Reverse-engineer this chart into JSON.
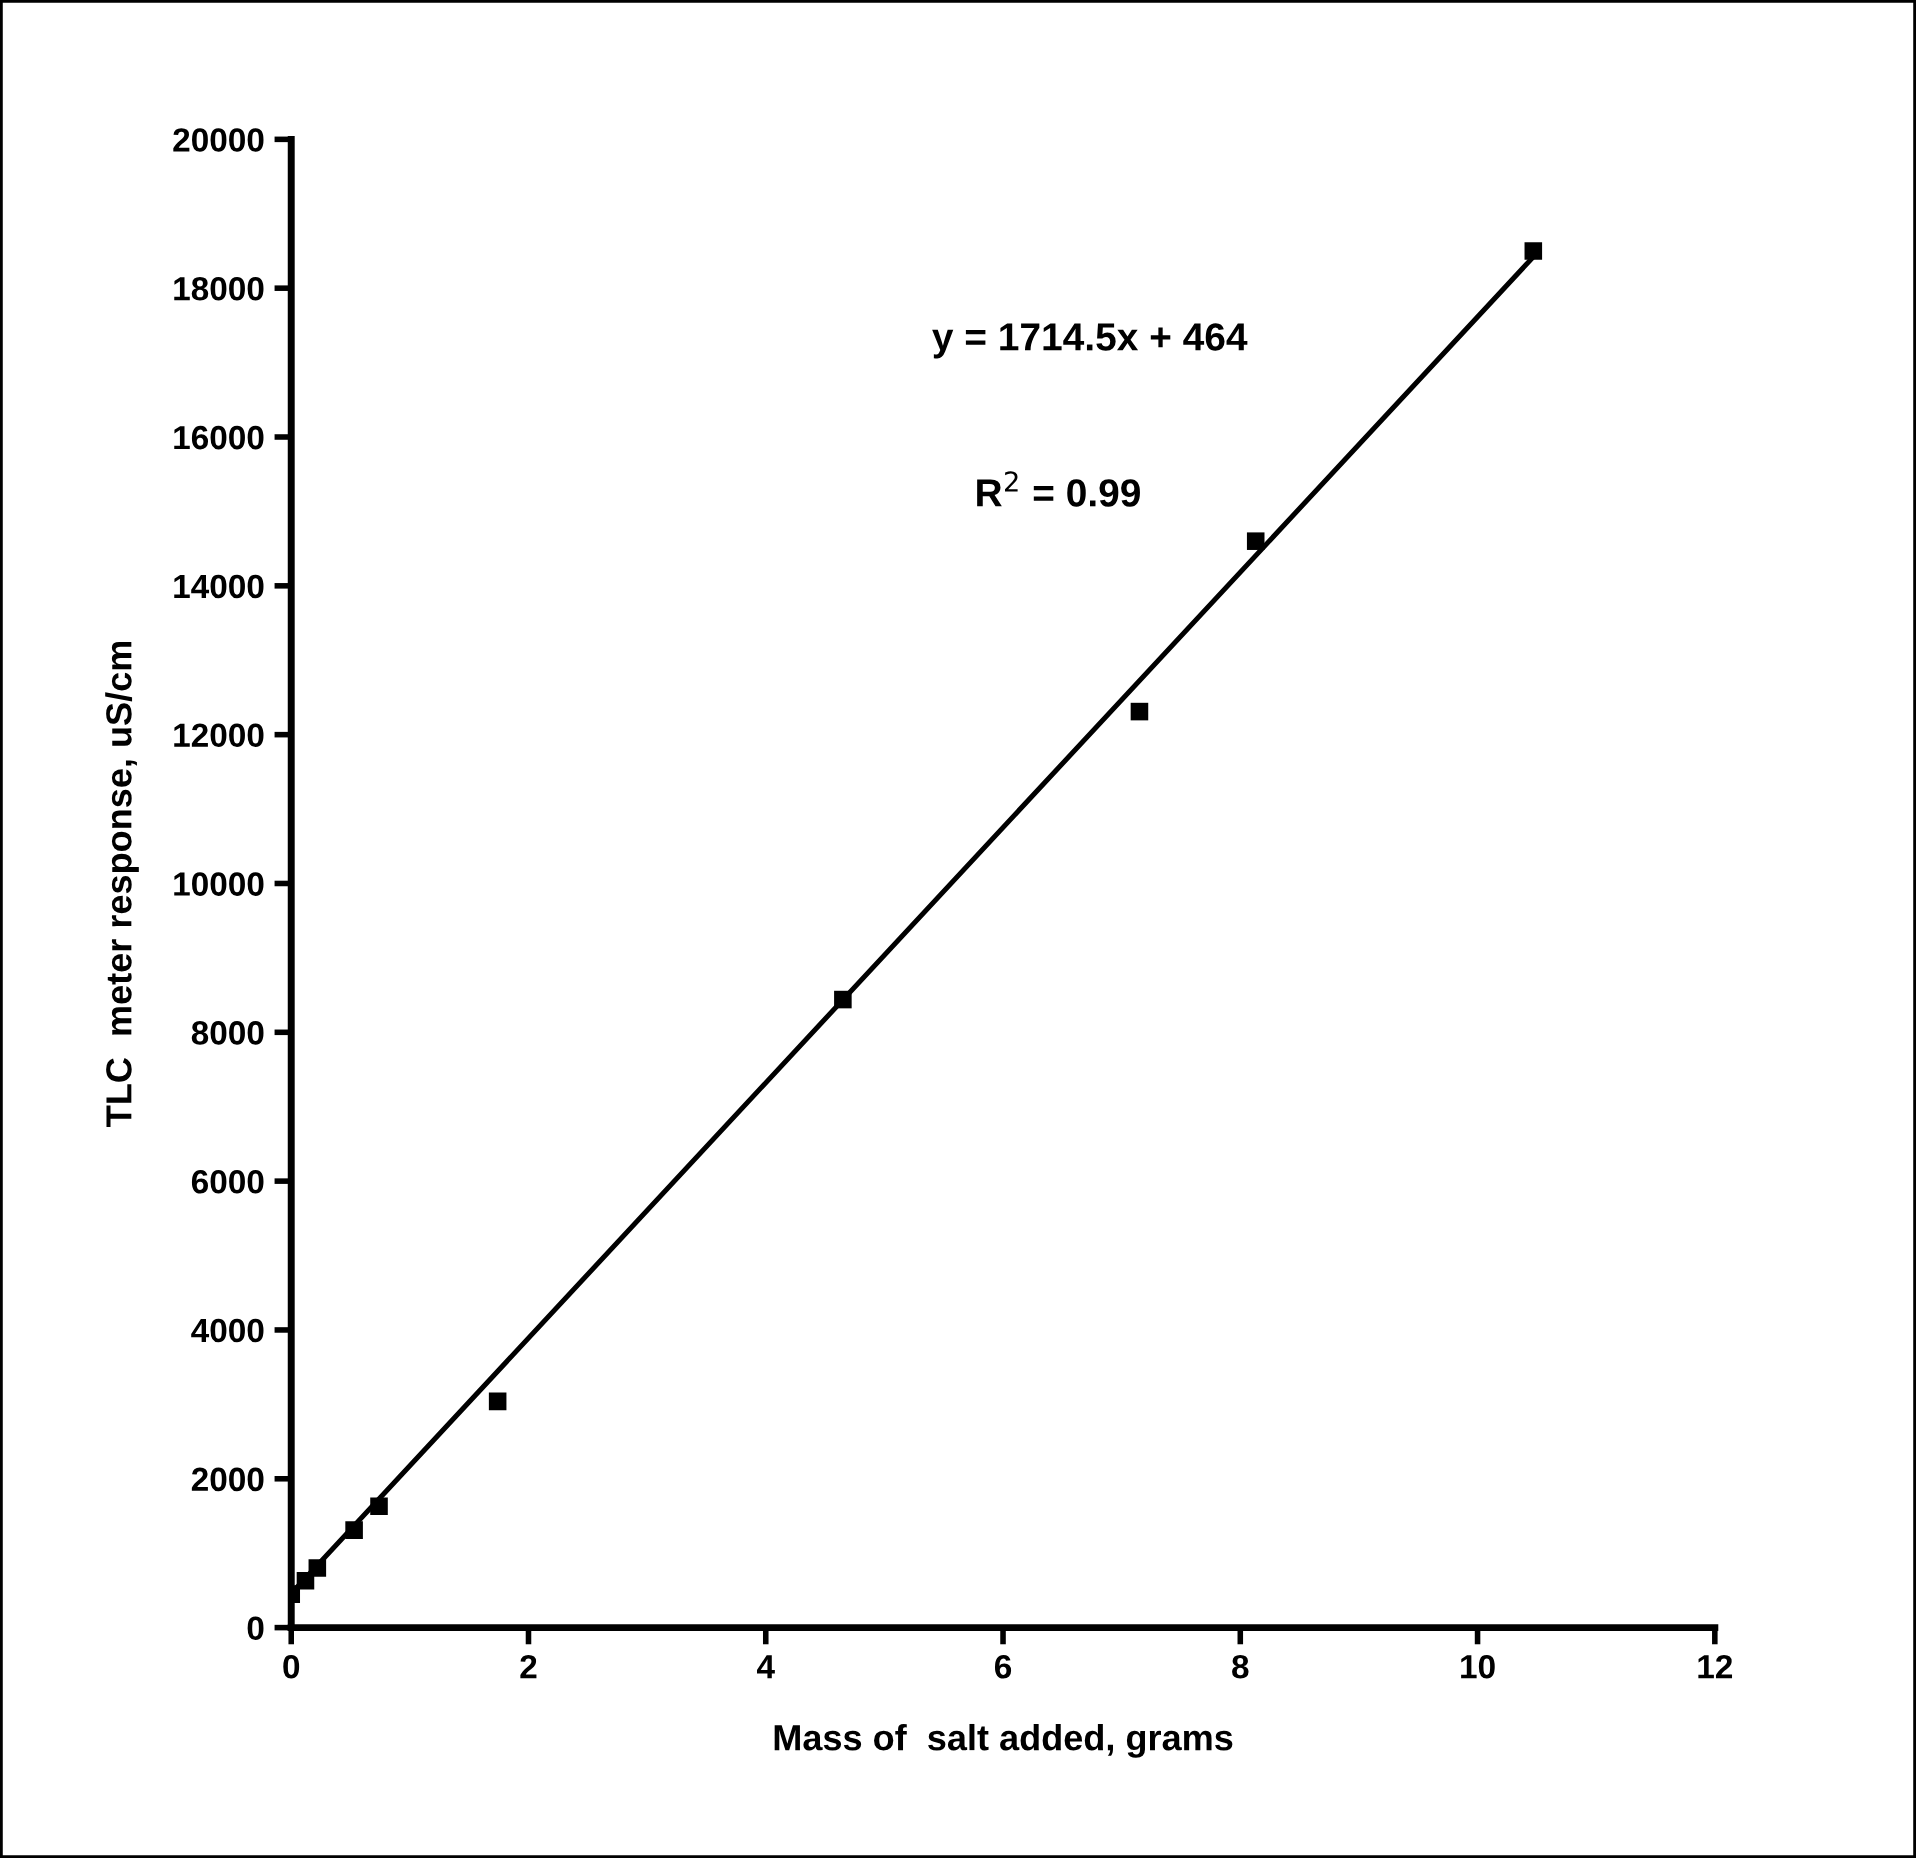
{
  "chart_data": {
    "type": "scatter",
    "xlabel": "Mass of  salt added, grams",
    "ylabel": "TLC  meter response, uS/cm",
    "series": [
      {
        "color": "#000000",
        "marker": "square",
        "x": [
          0,
          0.12,
          0.22,
          0.53,
          0.74,
          1.74,
          4.65,
          7.15,
          8.13,
          10.47
        ],
        "values": [
          450,
          630,
          800,
          1310,
          1630,
          3040,
          8440,
          12310,
          14600,
          18500
        ]
      },
      {
        "type": "line",
        "color": "#000000",
        "marker": "none",
        "line_style": "solid",
        "x": [
          0,
          10.47
        ],
        "values": [
          460,
          18420
        ]
      }
    ],
    "annotations": [
      "y = 1714.5x + 464",
      "R$^{2}$ = 0.99"
    ],
    "xlim": [
      0,
      12
    ],
    "xticks": [
      0,
      2,
      4,
      6,
      8,
      10,
      12
    ],
    "ylim": [
      0,
      20000
    ],
    "yticks": [
      0,
      2000,
      4000,
      6000,
      8000,
      10000,
      12000,
      14000,
      16000,
      18000,
      20000
    ],
    "grid": false
  }
}
